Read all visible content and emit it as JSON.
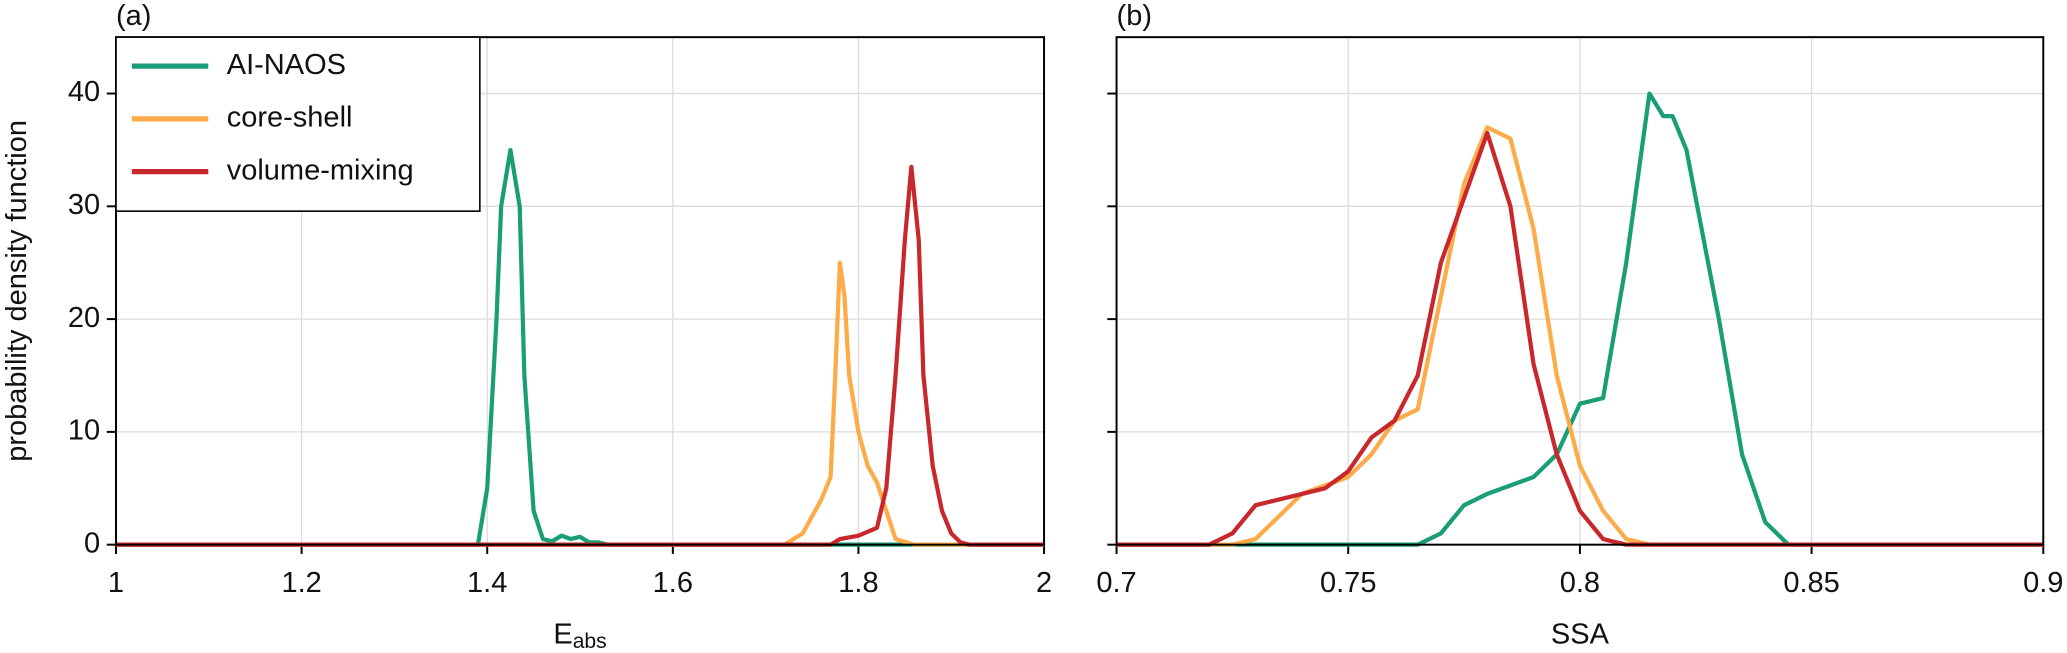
{
  "chart_data": [
    {
      "type": "line",
      "title": "(a)",
      "xlabel": "E",
      "xlabel_sub": "abs",
      "ylabel": "probability density function",
      "xlim": [
        1,
        2
      ],
      "xticks": [
        1,
        1.2,
        1.4,
        1.6,
        1.8,
        2
      ],
      "ylim": [
        0,
        45
      ],
      "yticks": [
        0,
        10,
        20,
        30,
        40
      ],
      "grid": true,
      "legend": "upper left",
      "series": [
        {
          "name": "AI-NAOS",
          "color": "#1a9e77",
          "x": [
            1,
            1.39,
            1.4,
            1.41,
            1.415,
            1.425,
            1.435,
            1.44,
            1.45,
            1.46,
            1.47,
            1.48,
            1.49,
            1.5,
            1.51,
            1.52,
            1.53,
            2
          ],
          "values": [
            0,
            0,
            5,
            20,
            30,
            35,
            30,
            15,
            3,
            0.5,
            0.3,
            0.8,
            0.5,
            0.7,
            0.2,
            0.2,
            0,
            0
          ]
        },
        {
          "name": "core-shell",
          "color": "#fdaa48",
          "x": [
            1,
            1.72,
            1.74,
            1.76,
            1.77,
            1.775,
            1.78,
            1.785,
            1.79,
            1.8,
            1.81,
            1.82,
            1.83,
            1.84,
            1.86,
            2
          ],
          "values": [
            0,
            0,
            1,
            4,
            6,
            15,
            25,
            22,
            15,
            10,
            7,
            5.5,
            3,
            0.5,
            0,
            0
          ]
        },
        {
          "name": "volume-mixing",
          "color": "#c8282b",
          "x": [
            1,
            1.77,
            1.78,
            1.8,
            1.82,
            1.83,
            1.84,
            1.85,
            1.857,
            1.865,
            1.87,
            1.88,
            1.89,
            1.9,
            1.91,
            1.92,
            2
          ],
          "values": [
            0,
            0,
            0.5,
            0.8,
            1.5,
            5,
            15,
            27,
            33.5,
            27,
            15,
            7,
            3,
            1,
            0.2,
            0,
            0
          ]
        }
      ]
    },
    {
      "type": "line",
      "title": "(b)",
      "xlabel": "SSA",
      "xlim": [
        0.7,
        0.9
      ],
      "xticks": [
        0.7,
        0.75,
        0.8,
        0.85,
        0.9
      ],
      "ylim": [
        0,
        45
      ],
      "yticks": [
        0,
        10,
        20,
        30,
        40
      ],
      "grid": true,
      "series": [
        {
          "color": "#1a9e77",
          "x": [
            0.7,
            0.765,
            0.77,
            0.775,
            0.78,
            0.79,
            0.795,
            0.8,
            0.805,
            0.81,
            0.815,
            0.818,
            0.82,
            0.823,
            0.83,
            0.835,
            0.84,
            0.845,
            0.9
          ],
          "values": [
            0,
            0,
            1,
            3.5,
            4.5,
            6,
            8,
            12.5,
            13,
            25,
            40,
            38,
            38,
            35,
            20,
            8,
            2,
            0,
            0
          ]
        },
        {
          "color": "#fdaa48",
          "x": [
            0.7,
            0.725,
            0.73,
            0.735,
            0.74,
            0.75,
            0.755,
            0.76,
            0.765,
            0.77,
            0.775,
            0.78,
            0.785,
            0.79,
            0.795,
            0.8,
            0.805,
            0.81,
            0.815,
            0.9
          ],
          "values": [
            0,
            0,
            0.5,
            2.5,
            4.5,
            6,
            8,
            11,
            12,
            22,
            32,
            37,
            36,
            28,
            15,
            7,
            3,
            0.5,
            0,
            0
          ]
        },
        {
          "color": "#c8282b",
          "x": [
            0.7,
            0.72,
            0.725,
            0.73,
            0.74,
            0.745,
            0.75,
            0.755,
            0.76,
            0.765,
            0.77,
            0.78,
            0.785,
            0.79,
            0.795,
            0.8,
            0.805,
            0.81,
            0.9
          ],
          "values": [
            0,
            0,
            1,
            3.5,
            4.5,
            5,
            6.5,
            9.5,
            11,
            15,
            25,
            36.5,
            30,
            16,
            8,
            3,
            0.5,
            0,
            0
          ]
        }
      ]
    }
  ]
}
